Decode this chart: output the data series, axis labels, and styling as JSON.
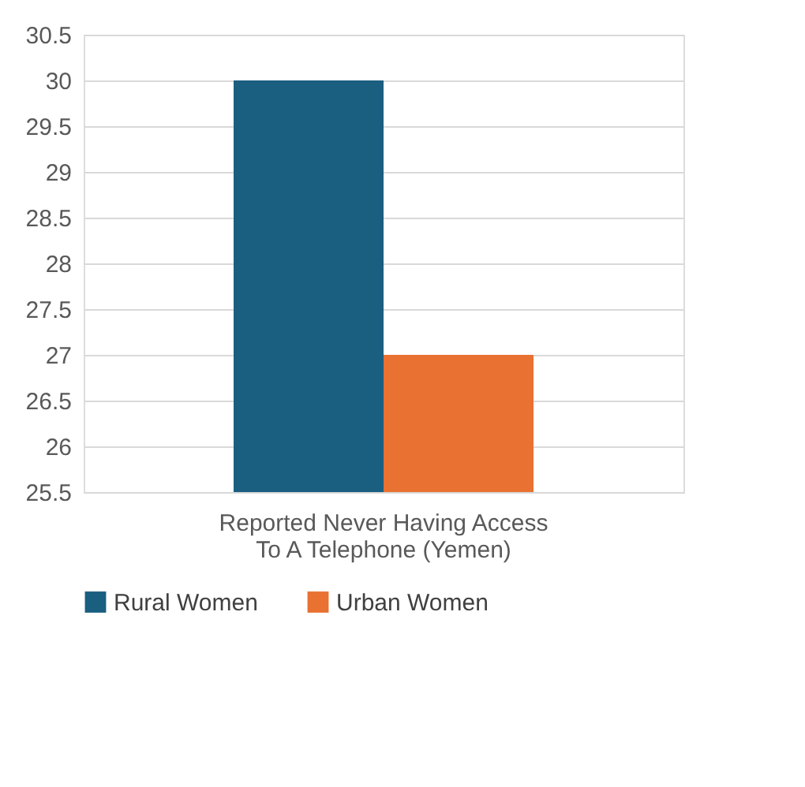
{
  "chart_data": {
    "type": "bar",
    "categories": [
      "Reported Never Having Access To A Telephone (Yemen)"
    ],
    "series": [
      {
        "name": "Rural Women",
        "color": "#1a5e80",
        "values": [
          30
        ]
      },
      {
        "name": "Urban Women",
        "color": "#e97132",
        "values": [
          27
        ]
      }
    ],
    "ylim": [
      25.5,
      30.5
    ],
    "yticks": [
      25.5,
      26,
      26.5,
      27,
      27.5,
      28,
      28.5,
      29,
      29.5,
      30,
      30.5
    ],
    "grid": "y",
    "legend": "bottom"
  }
}
